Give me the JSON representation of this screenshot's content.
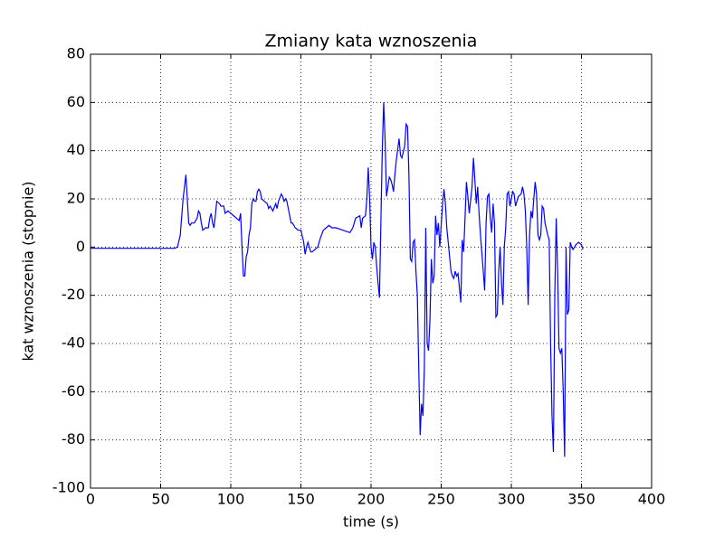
{
  "chart_data": {
    "type": "line",
    "title": "Zmiany kata wznoszenia",
    "x_label": "time (s)",
    "y_label": "kat wznoszenia (stopnie)",
    "xlim": [
      0,
      400
    ],
    "ylim": [
      -100,
      80
    ],
    "xticks": [
      0,
      50,
      100,
      150,
      200,
      250,
      300,
      350,
      400
    ],
    "yticks": [
      -100,
      -80,
      -60,
      -40,
      -20,
      0,
      20,
      40,
      60,
      80
    ],
    "grid": true,
    "x": [
      0,
      60,
      62,
      64,
      66,
      68,
      69,
      70,
      71,
      72,
      74,
      76,
      77,
      78,
      79,
      80,
      82,
      84,
      85,
      86,
      87,
      88,
      89,
      90,
      92,
      93,
      95,
      96,
      98,
      100,
      104,
      106,
      107,
      108,
      109,
      110,
      111,
      112,
      113,
      114,
      115,
      116,
      117,
      118,
      119,
      120,
      121,
      122,
      124,
      126,
      127,
      128,
      129,
      130,
      132,
      133,
      134,
      136,
      137,
      138,
      139,
      140,
      141,
      142,
      143,
      144,
      146,
      148,
      150,
      152,
      153,
      154,
      155,
      156,
      157,
      158,
      160,
      162,
      164,
      166,
      168,
      170,
      172,
      175,
      180,
      185,
      187,
      189,
      192,
      193,
      194,
      196,
      197,
      198,
      199,
      200,
      201,
      202,
      203,
      204,
      205,
      206,
      207,
      208,
      209,
      210,
      211,
      212,
      213,
      214,
      215,
      216,
      217,
      218,
      220,
      221,
      222,
      224,
      225,
      226,
      227,
      228,
      229,
      230,
      231,
      232,
      233,
      234,
      235,
      236,
      237,
      238,
      239,
      240,
      241,
      242,
      243,
      244,
      245,
      246,
      247,
      248,
      249,
      251,
      252,
      253,
      254,
      255,
      257,
      258,
      259,
      260,
      261,
      262,
      263,
      264,
      265,
      266,
      267,
      268,
      269,
      270,
      272,
      273,
      274,
      275,
      276,
      277,
      278,
      280,
      281,
      282,
      283,
      284,
      285,
      286,
      287,
      288,
      289,
      290,
      291,
      292,
      293,
      294,
      295,
      296,
      297,
      298,
      299,
      300,
      301,
      302,
      303,
      305,
      307,
      308,
      309,
      310,
      311,
      312,
      313,
      314,
      315,
      316,
      317,
      318,
      319,
      320,
      321,
      322,
      323,
      324,
      326,
      327,
      328,
      329,
      330,
      331,
      332,
      333,
      334,
      335,
      336,
      337,
      338,
      339,
      340,
      341,
      342,
      343,
      344,
      346,
      348,
      350,
      351
    ],
    "series": [
      {
        "name": "kat",
        "color": "#0000ff",
        "values": [
          -0.5,
          -0.5,
          0,
          5,
          20,
          30,
          20,
          10,
          9,
          10,
          10,
          12,
          15,
          14,
          10,
          7,
          8,
          8,
          12,
          14,
          10,
          8,
          13,
          19,
          18,
          17,
          17,
          14,
          15,
          14,
          12,
          11,
          14,
          0,
          -12,
          -12,
          -4,
          -2,
          5,
          8,
          18,
          20,
          19,
          19,
          23,
          24,
          23,
          20,
          19,
          18,
          16,
          17,
          16,
          15,
          18,
          16,
          19,
          22,
          21,
          19,
          20,
          19,
          16,
          13,
          10,
          10,
          8,
          7,
          7,
          2,
          -3,
          0,
          2,
          0,
          -2,
          -2,
          -1,
          0,
          4,
          7,
          8,
          9,
          8,
          8,
          7,
          6,
          8,
          12,
          13,
          8,
          12,
          13,
          20,
          33,
          20,
          0,
          -5,
          2,
          0,
          -8,
          -15,
          -21,
          10,
          40,
          60,
          45,
          21,
          25,
          29,
          28,
          26,
          23,
          30,
          36,
          45,
          38,
          37,
          42,
          51,
          50,
          30,
          -5,
          -6,
          2,
          3,
          -10,
          -20,
          -50,
          -78,
          -65,
          -70,
          -50,
          8,
          -40,
          -43,
          -30,
          -5,
          -15,
          -12,
          13,
          5,
          10,
          0,
          18,
          24,
          18,
          8,
          2,
          -10,
          -12,
          -13,
          -10,
          -12,
          -11,
          -17,
          -23,
          3,
          -2,
          12,
          27,
          21,
          14,
          25,
          37,
          28,
          18,
          25,
          14,
          5,
          -10,
          -18,
          10,
          21,
          22,
          12,
          6,
          18,
          10,
          -29,
          -28,
          -10,
          0,
          -15,
          -24,
          0,
          8,
          22,
          23,
          17,
          20,
          23,
          22,
          17,
          21,
          22,
          25,
          22,
          15,
          0,
          -24,
          5,
          15,
          12,
          20,
          27,
          22,
          5,
          3,
          5,
          17,
          16,
          10,
          5,
          3,
          -40,
          -70,
          -85,
          -20,
          12,
          -10,
          -42,
          -44,
          -42,
          -60,
          -87,
          0,
          -28,
          -26,
          2,
          0,
          -1,
          1,
          2,
          1,
          -1
        ]
      }
    ]
  }
}
